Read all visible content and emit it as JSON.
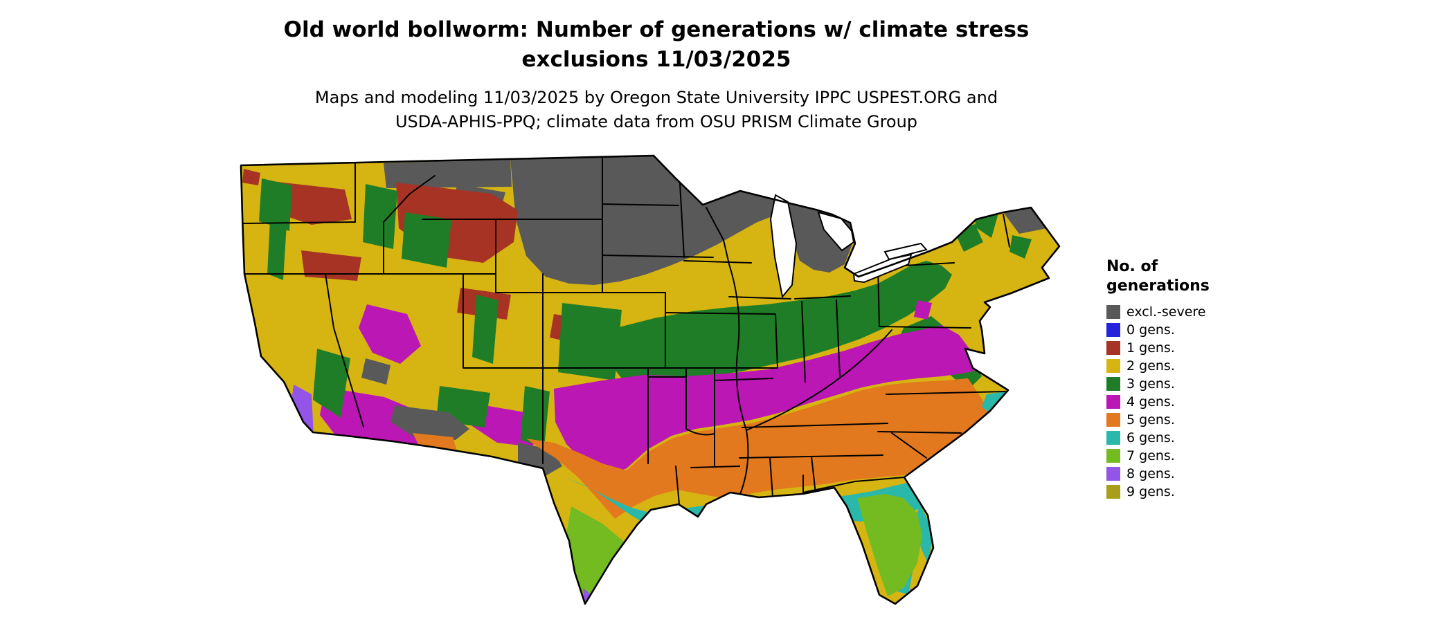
{
  "title": {
    "line1": "Old world bollworm: Number of generations w/ climate stress",
    "line2": "exclusions 11/03/2025"
  },
  "subtitle": {
    "line1": "Maps and modeling 11/03/2025 by Oregon State University IPPC USPEST.ORG and",
    "line2": "USDA-APHIS-PPQ; climate data from OSU PRISM Climate Group"
  },
  "legend": {
    "title_line1": "No. of",
    "title_line2": "generations",
    "items": [
      {
        "label": "excl.-severe",
        "color": "#595959"
      },
      {
        "label": "0 gens.",
        "color": "#2424dd"
      },
      {
        "label": "1 gens.",
        "color": "#a63324"
      },
      {
        "label": "2 gens.",
        "color": "#d6b513"
      },
      {
        "label": "3 gens.",
        "color": "#1e7d26"
      },
      {
        "label": "4 gens.",
        "color": "#bb17b4"
      },
      {
        "label": "5 gens.",
        "color": "#e2791e"
      },
      {
        "label": "6 gens.",
        "color": "#29b8aa"
      },
      {
        "label": "7 gens.",
        "color": "#74bb22"
      },
      {
        "label": "8 gens.",
        "color": "#9355e8"
      },
      {
        "label": "9 gens.",
        "color": "#a89e17"
      }
    ]
  },
  "map": {
    "region_shown": "Continental United States",
    "dominant_bands_north_to_south": [
      "excl.-severe",
      "2 gens.",
      "3 gens.",
      "4 gens.",
      "5 gens.",
      "6 gens.",
      "7 gens."
    ]
  }
}
